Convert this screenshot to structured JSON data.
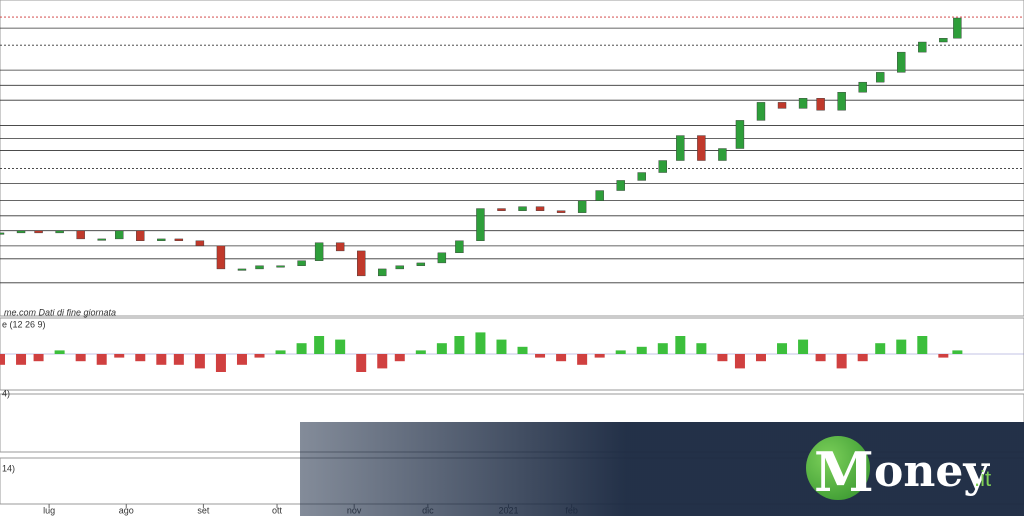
{
  "chart_data": {
    "type": "candlestick",
    "source_note": "me.com  Dati di fine giornata",
    "macd_label": "e (12 26 9)",
    "rsi_label": "4)",
    "lower_label": "14)",
    "brand": {
      "initial": "M",
      "rest": "oney",
      "suffix": ".it"
    },
    "xlim": [
      0,
      292
    ],
    "xticks": [
      {
        "value": 14,
        "label": "lug"
      },
      {
        "value": 36,
        "label": "ago"
      },
      {
        "value": 58,
        "label": "set"
      },
      {
        "value": 79,
        "label": "ott"
      },
      {
        "value": 101,
        "label": "nov"
      },
      {
        "value": 122,
        "label": "dic"
      },
      {
        "value": 145,
        "label": "2021"
      },
      {
        "value": 163,
        "label": "feb"
      }
    ],
    "ylim": [
      0,
      100
    ],
    "levels": [
      94.6,
      91.1,
      85.7,
      77.8,
      73,
      68.3,
      60.3,
      56.2,
      52.4,
      46.7,
      41.9,
      36.5,
      31.7,
      27,
      22.2,
      18.1,
      10.5
    ],
    "x": [
      0,
      6,
      11,
      17,
      23,
      29,
      34,
      40,
      46,
      51,
      57,
      63,
      69,
      74,
      80,
      86,
      91,
      97,
      103,
      109,
      114,
      120,
      126,
      131,
      137,
      143,
      149,
      154,
      160,
      166,
      171,
      177,
      183,
      189,
      194,
      200,
      206,
      211,
      217,
      223,
      229,
      234,
      240,
      246,
      251,
      257,
      263,
      269,
      273
    ],
    "series": [
      {
        "name": "price",
        "up_color": "#2e9e3a",
        "down_color": "#c0392b",
        "values": [
          26.3,
          27,
          26.3,
          27,
          24.4,
          24.4,
          27,
          23.8,
          24.4,
          23.8,
          22.2,
          14.9,
          14.9,
          15.9,
          15.9,
          17.5,
          23.2,
          20.6,
          12.7,
          14.9,
          15.9,
          16.8,
          20,
          23.8,
          34,
          33.3,
          34.6,
          33.3,
          32.7,
          36.5,
          39.7,
          42.9,
          45.4,
          49.2,
          57.1,
          49.2,
          53,
          61.9,
          67.6,
          65.7,
          68.9,
          65.1,
          70.8,
          74,
          77.1,
          83.5,
          86.7,
          87.9,
          94.3
        ]
      },
      {
        "name": "macd",
        "up_color": "#3cbf3c",
        "down_color": "#d04040",
        "values": [
          -0.3,
          -0.3,
          -0.2,
          0.1,
          -0.2,
          -0.3,
          -0.1,
          -0.2,
          -0.3,
          -0.3,
          -0.4,
          -0.5,
          -0.3,
          -0.1,
          0.1,
          0.3,
          0.5,
          0.4,
          -0.5,
          -0.4,
          -0.2,
          0.1,
          0.3,
          0.5,
          0.6,
          0.4,
          0.2,
          -0.1,
          -0.2,
          -0.3,
          -0.1,
          0.1,
          0.2,
          0.3,
          0.5,
          0.3,
          -0.2,
          -0.4,
          -0.2,
          0.3,
          0.4,
          -0.2,
          -0.4,
          -0.2,
          0.3,
          0.4,
          0.5,
          -0.1,
          0.1
        ]
      }
    ],
    "y2lim": [
      -1,
      1
    ]
  }
}
